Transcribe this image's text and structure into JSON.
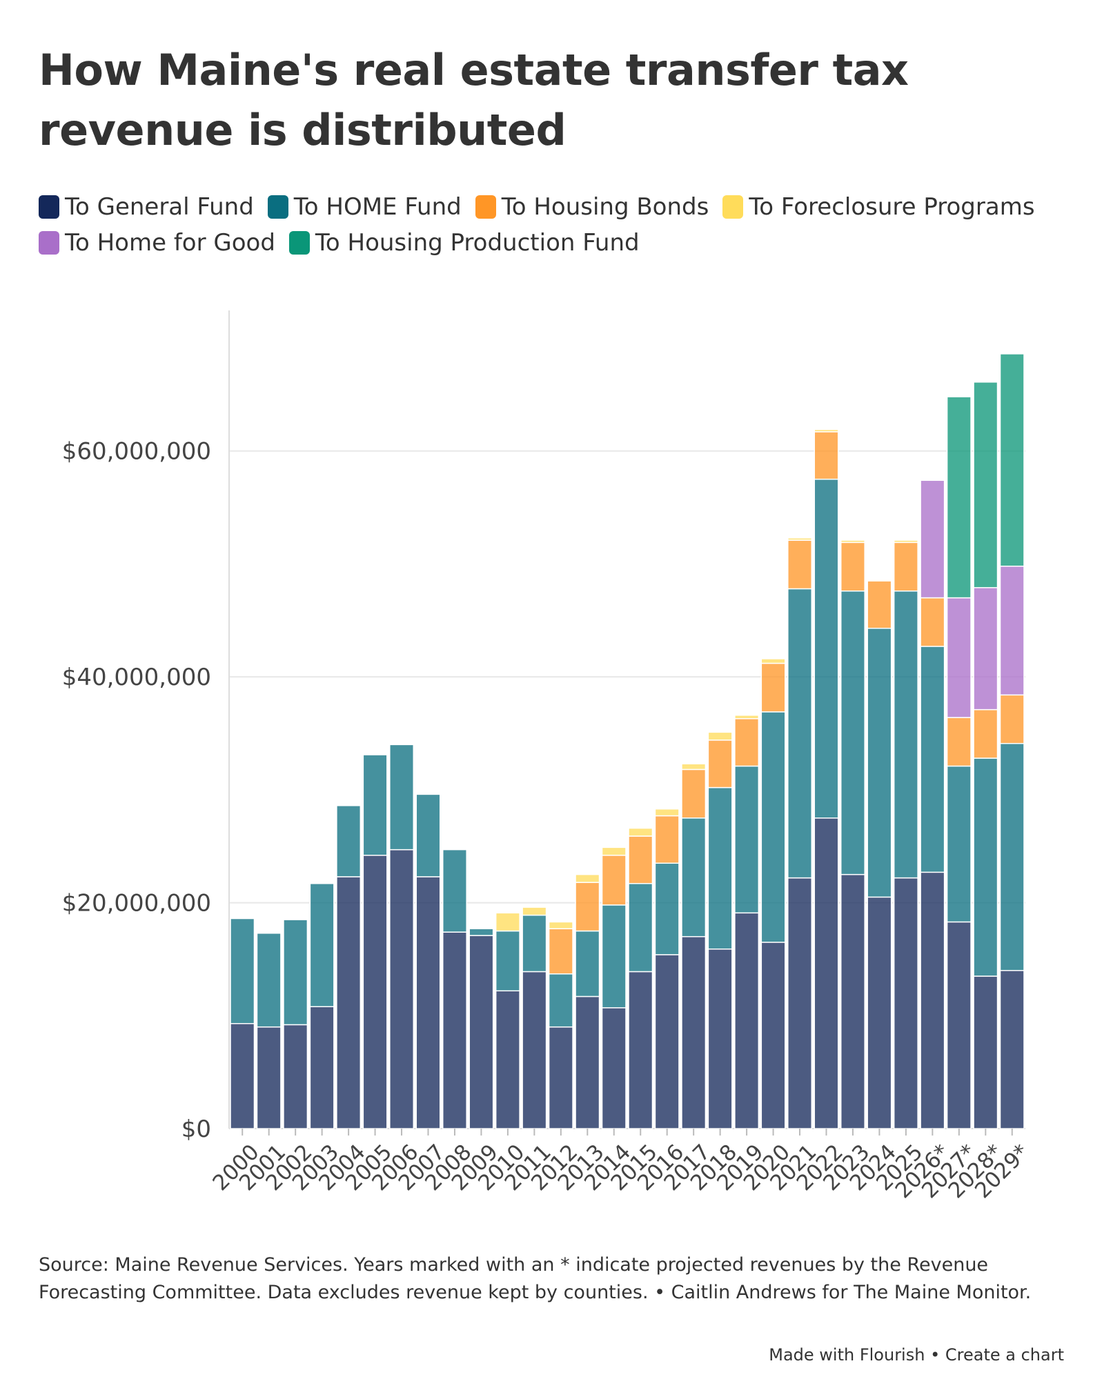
{
  "title": "How Maine's real estate transfer tax revenue is distributed",
  "footer": {
    "source": "Source: Maine Revenue Services. Years marked with an * indicate projected revenues by the Revenue Forecasting Committee. Data excludes revenue kept by counties. • Caitlin Andrews for The Maine Monitor.",
    "made_with": "Made with Flourish",
    "separator": "•",
    "create_chart": "Create a chart"
  },
  "chart_data": {
    "type": "bar",
    "stacked": true,
    "categories": [
      "2000",
      "2001",
      "2002",
      "2003",
      "2004",
      "2005",
      "2006",
      "2007",
      "2008",
      "2009",
      "2010",
      "2011",
      "2012",
      "2013",
      "2014",
      "2015",
      "2016",
      "2017",
      "2018",
      "2019",
      "2020",
      "2021",
      "2022",
      "2023",
      "2024",
      "2025",
      "2026*",
      "2027*",
      "2028*",
      "2029*"
    ],
    "ylim": [
      0,
      70000000
    ],
    "yticks": [
      {
        "value": 0,
        "label": "$0"
      },
      {
        "value": 20000000,
        "label": "$20,000,000"
      },
      {
        "value": 40000000,
        "label": "$40,000,000"
      },
      {
        "value": 60000000,
        "label": "$60,000,000"
      }
    ],
    "grid": true,
    "legend_position": "top-left",
    "series": [
      {
        "name": "To General Fund",
        "color": "#14285a",
        "values": [
          9300000,
          9000000,
          9200000,
          10800000,
          22300000,
          24200000,
          24700000,
          22300000,
          17400000,
          17100000,
          12200000,
          13900000,
          9000000,
          11700000,
          10700000,
          13900000,
          15400000,
          17000000,
          15900000,
          19100000,
          16500000,
          22200000,
          27500000,
          22500000,
          20500000,
          22200000,
          22700000,
          18300000,
          13500000,
          14000000
        ]
      },
      {
        "name": "To HOME Fund",
        "color": "#0a6e80",
        "values": [
          9300000,
          8300000,
          9300000,
          10900000,
          6300000,
          8900000,
          9300000,
          7300000,
          7300000,
          600000,
          5300000,
          5000000,
          4700000,
          5800000,
          9100000,
          7800000,
          8100000,
          10500000,
          14300000,
          13000000,
          20400000,
          25600000,
          30000000,
          25100000,
          23800000,
          25400000,
          20000000,
          13800000,
          19300000,
          20100000
        ]
      },
      {
        "name": "To Housing Bonds",
        "color": "#ff9626",
        "values": [
          0,
          0,
          0,
          0,
          0,
          0,
          0,
          0,
          0,
          0,
          0,
          0,
          4000000,
          4300000,
          4400000,
          4200000,
          4200000,
          4300000,
          4200000,
          4200000,
          4300000,
          4300000,
          4200000,
          4300000,
          4200000,
          4300000,
          4300000,
          4300000,
          4300000,
          4300000
        ]
      },
      {
        "name": "To Foreclosure Programs",
        "color": "#ffdc5a",
        "values": [
          0,
          0,
          0,
          0,
          0,
          0,
          0,
          0,
          0,
          0,
          1600000,
          700000,
          600000,
          700000,
          700000,
          700000,
          600000,
          500000,
          700000,
          300000,
          400000,
          200000,
          200000,
          200000,
          100000,
          200000,
          0,
          0,
          0,
          0
        ]
      },
      {
        "name": "To Home for Good",
        "color": "#a96fc9",
        "values": [
          0,
          0,
          0,
          0,
          0,
          0,
          0,
          0,
          0,
          0,
          0,
          0,
          0,
          0,
          0,
          0,
          0,
          0,
          0,
          0,
          0,
          0,
          0,
          0,
          0,
          0,
          10400000,
          10600000,
          10800000,
          11400000
        ]
      },
      {
        "name": "To Housing Production Fund",
        "color": "#0a9678",
        "values": [
          0,
          0,
          0,
          0,
          0,
          0,
          0,
          0,
          0,
          0,
          0,
          0,
          0,
          0,
          0,
          0,
          0,
          0,
          0,
          0,
          0,
          0,
          0,
          0,
          0,
          0,
          0,
          17800000,
          18200000,
          18800000
        ]
      }
    ]
  }
}
